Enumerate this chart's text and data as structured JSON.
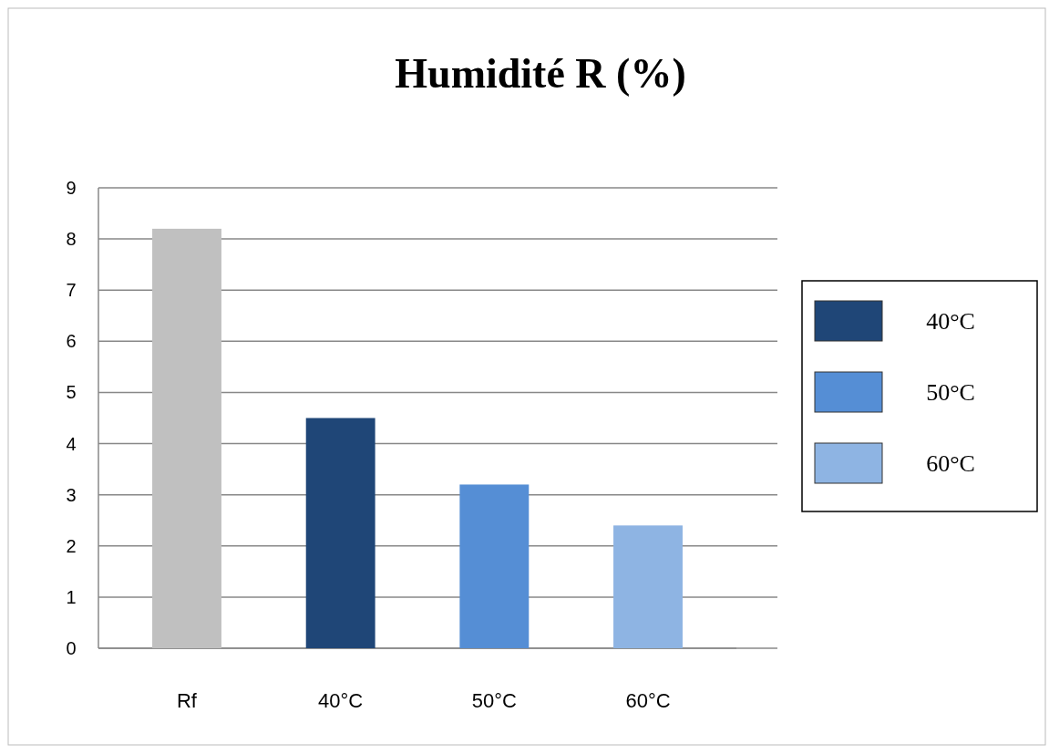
{
  "chart_data": {
    "type": "bar",
    "title": "Humidité R (%)",
    "categories": [
      "Rf",
      "40°C",
      "50°C",
      "60°C"
    ],
    "series": [
      {
        "color": "#c0c0c0",
        "values": [
          8.2,
          null,
          null,
          null
        ]
      },
      {
        "name": "40°C",
        "color": "#1f4677",
        "values": [
          null,
          4.5,
          null,
          null
        ]
      },
      {
        "name": "50°C",
        "color": "#558ed5",
        "values": [
          null,
          null,
          3.2,
          null
        ]
      },
      {
        "name": "60°C",
        "color": "#8eb4e3",
        "values": [
          null,
          null,
          null,
          2.4
        ]
      }
    ],
    "ylim": [
      0,
      9
    ],
    "yticks": [
      0,
      1,
      2,
      3,
      4,
      5,
      6,
      7,
      8,
      9
    ],
    "grid": "y",
    "legend": "right"
  }
}
